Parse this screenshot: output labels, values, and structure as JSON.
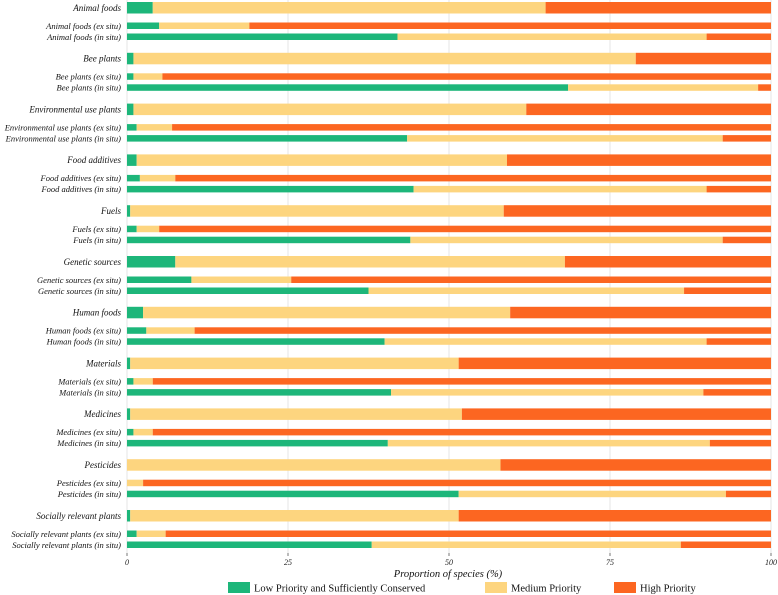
{
  "chart_data": {
    "type": "bar",
    "orientation": "horizontal",
    "stacked": true,
    "xlabel": "Proportion of species (%)",
    "xlim": [
      0,
      100
    ],
    "xticks": [
      "0",
      "25",
      "50",
      "75",
      "100"
    ],
    "grid": true,
    "legend_position": "bottom",
    "series": [
      {
        "name": "Low Priority and Sufficiently Conserved",
        "color": "#1db67a"
      },
      {
        "name": "Medium Priority",
        "color": "#fdd57f"
      },
      {
        "name": "High Priority",
        "color": "#fc6621"
      }
    ],
    "rows": [
      {
        "label": "Animal foods",
        "main": true,
        "values": [
          4,
          61,
          35
        ]
      },
      {
        "label": "Animal foods (ex situ)",
        "main": false,
        "values": [
          5,
          14,
          81
        ]
      },
      {
        "label": "Animal foods (in situ)",
        "main": false,
        "values": [
          42,
          48,
          10
        ]
      },
      {
        "label": "Bee plants",
        "main": true,
        "values": [
          1,
          78,
          21
        ]
      },
      {
        "label": "Bee plants (ex situ)",
        "main": false,
        "values": [
          1,
          4.5,
          94.5
        ]
      },
      {
        "label": "Bee plants (in situ)",
        "main": false,
        "values": [
          68.5,
          29.5,
          2
        ]
      },
      {
        "label": "Environmental use plants",
        "main": true,
        "values": [
          1,
          61,
          38
        ]
      },
      {
        "label": "Environmental use plants (ex situ)",
        "main": false,
        "values": [
          1.5,
          5.5,
          93
        ]
      },
      {
        "label": "Environmental use plants (in situ)",
        "main": false,
        "values": [
          43.5,
          49,
          7.5
        ]
      },
      {
        "label": "Food additives",
        "main": true,
        "values": [
          1.5,
          57.5,
          41
        ]
      },
      {
        "label": "Food additives (ex situ)",
        "main": false,
        "values": [
          2,
          5.5,
          92.5
        ]
      },
      {
        "label": "Food additives (in situ)",
        "main": false,
        "values": [
          44.5,
          45.5,
          10
        ]
      },
      {
        "label": "Fuels",
        "main": true,
        "values": [
          0.5,
          58,
          41.5
        ]
      },
      {
        "label": "Fuels (ex situ)",
        "main": false,
        "values": [
          1.5,
          3.5,
          95
        ]
      },
      {
        "label": "Fuels (in situ)",
        "main": false,
        "values": [
          44,
          48.5,
          7.5
        ]
      },
      {
        "label": "Genetic sources",
        "main": true,
        "values": [
          7.5,
          60.5,
          32
        ]
      },
      {
        "label": "Genetic sources (ex situ)",
        "main": false,
        "values": [
          10,
          15.5,
          74.5
        ]
      },
      {
        "label": "Genetic sources (in situ)",
        "main": false,
        "values": [
          37.5,
          49,
          13.5
        ]
      },
      {
        "label": "Human foods",
        "main": true,
        "values": [
          2.5,
          57,
          40.5
        ]
      },
      {
        "label": "Human foods (ex situ)",
        "main": false,
        "values": [
          3,
          7.5,
          89.5
        ]
      },
      {
        "label": "Human foods (in situ)",
        "main": false,
        "values": [
          40,
          50,
          10
        ]
      },
      {
        "label": "Materials",
        "main": true,
        "values": [
          0.5,
          51,
          48.5
        ]
      },
      {
        "label": "Materials (ex situ)",
        "main": false,
        "values": [
          1,
          3,
          96
        ]
      },
      {
        "label": "Materials (in situ)",
        "main": false,
        "values": [
          41,
          48.5,
          10.5
        ]
      },
      {
        "label": "Medicines",
        "main": true,
        "values": [
          0.5,
          51.5,
          48
        ]
      },
      {
        "label": "Medicines (ex situ)",
        "main": false,
        "values": [
          1,
          3,
          96
        ]
      },
      {
        "label": "Medicines (in situ)",
        "main": false,
        "values": [
          40.5,
          50,
          9.5
        ]
      },
      {
        "label": "Pesticides",
        "main": true,
        "values": [
          0,
          58,
          42
        ]
      },
      {
        "label": "Pesticides (ex situ)",
        "main": false,
        "values": [
          0,
          2.5,
          97.5
        ]
      },
      {
        "label": "Pesticides (in situ)",
        "main": false,
        "values": [
          51.5,
          41.5,
          7
        ]
      },
      {
        "label": "Socially relevant plants",
        "main": true,
        "values": [
          0.5,
          51,
          48.5
        ]
      },
      {
        "label": "Socially relevant plants (ex situ)",
        "main": false,
        "values": [
          1.5,
          4.5,
          94
        ]
      },
      {
        "label": "Socially relevant plants (in situ)",
        "main": false,
        "values": [
          38,
          48,
          14
        ]
      }
    ]
  }
}
